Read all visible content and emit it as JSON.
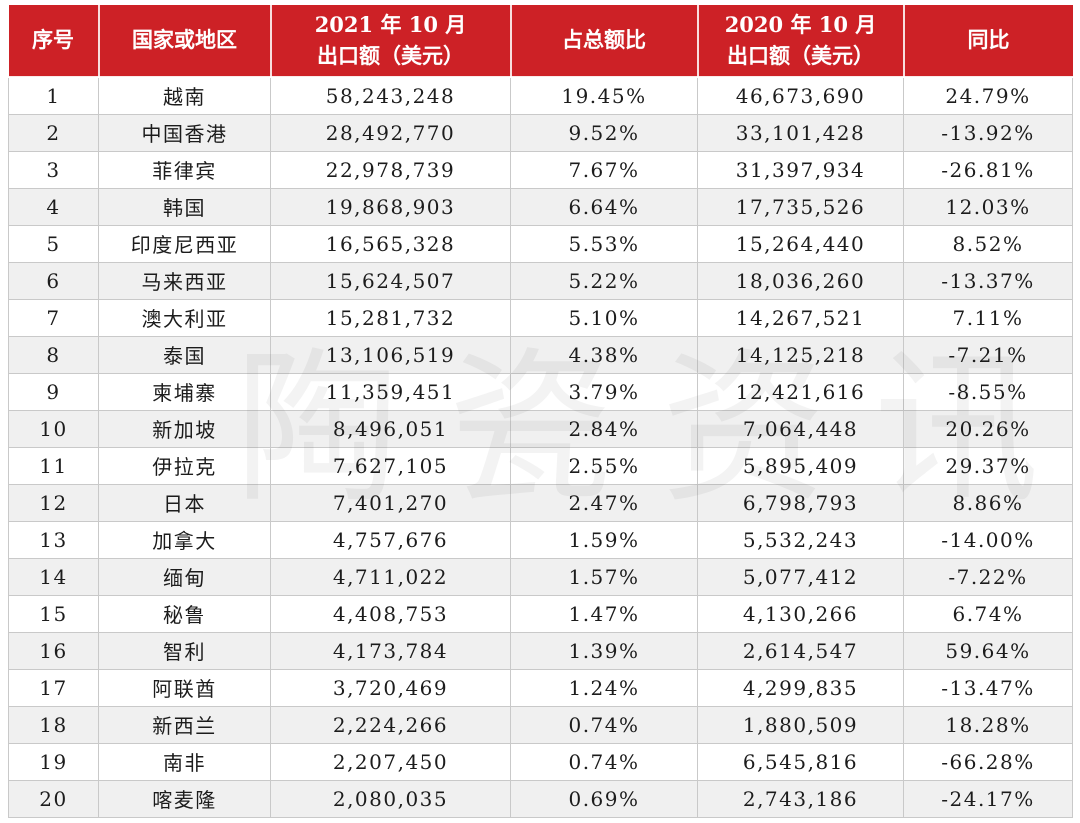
{
  "header": {
    "col_rank": "序号",
    "col_country": "国家或地区",
    "col_2021_line1": "2021 年 10 月",
    "col_2021_line2": "出口额（美元）",
    "col_share": "占总额比",
    "col_2020_line1": "2020 年 10 月",
    "col_2020_line2": "出口额（美元）",
    "col_yoy": "同比"
  },
  "watermark_text": "陶瓷资讯",
  "colors": {
    "header_bg": "#cd2126",
    "header_text": "#ffffff",
    "row_alt_bg": "#f0f0f0",
    "body_text": "#1c1c1c",
    "grid_line": "#c9c9c9"
  },
  "chart_data": {
    "type": "table",
    "title": "",
    "columns": [
      "序号",
      "国家或地区",
      "2021 年 10 月 出口额（美元）",
      "占总额比",
      "2020 年 10 月 出口额（美元）",
      "同比"
    ],
    "rows": [
      [
        "1",
        "越南",
        "58,243,248",
        "19.45%",
        "46,673,690",
        "24.79%"
      ],
      [
        "2",
        "中国香港",
        "28,492,770",
        "9.52%",
        "33,101,428",
        "-13.92%"
      ],
      [
        "3",
        "菲律宾",
        "22,978,739",
        "7.67%",
        "31,397,934",
        "-26.81%"
      ],
      [
        "4",
        "韩国",
        "19,868,903",
        "6.64%",
        "17,735,526",
        "12.03%"
      ],
      [
        "5",
        "印度尼西亚",
        "16,565,328",
        "5.53%",
        "15,264,440",
        "8.52%"
      ],
      [
        "6",
        "马来西亚",
        "15,624,507",
        "5.22%",
        "18,036,260",
        "-13.37%"
      ],
      [
        "7",
        "澳大利亚",
        "15,281,732",
        "5.10%",
        "14,267,521",
        "7.11%"
      ],
      [
        "8",
        "泰国",
        "13,106,519",
        "4.38%",
        "14,125,218",
        "-7.21%"
      ],
      [
        "9",
        "柬埔寨",
        "11,359,451",
        "3.79%",
        "12,421,616",
        "-8.55%"
      ],
      [
        "10",
        "新加坡",
        "8,496,051",
        "2.84%",
        "7,064,448",
        "20.26%"
      ],
      [
        "11",
        "伊拉克",
        "7,627,105",
        "2.55%",
        "5,895,409",
        "29.37%"
      ],
      [
        "12",
        "日本",
        "7,401,270",
        "2.47%",
        "6,798,793",
        "8.86%"
      ],
      [
        "13",
        "加拿大",
        "4,757,676",
        "1.59%",
        "5,532,243",
        "-14.00%"
      ],
      [
        "14",
        "缅甸",
        "4,711,022",
        "1.57%",
        "5,077,412",
        "-7.22%"
      ],
      [
        "15",
        "秘鲁",
        "4,408,753",
        "1.47%",
        "4,130,266",
        "6.74%"
      ],
      [
        "16",
        "智利",
        "4,173,784",
        "1.39%",
        "2,614,547",
        "59.64%"
      ],
      [
        "17",
        "阿联酋",
        "3,720,469",
        "1.24%",
        "4,299,835",
        "-13.47%"
      ],
      [
        "18",
        "新西兰",
        "2,224,266",
        "0.74%",
        "1,880,509",
        "18.28%"
      ],
      [
        "19",
        "南非",
        "2,207,450",
        "0.74%",
        "6,545,816",
        "-66.28%"
      ],
      [
        "20",
        "喀麦隆",
        "2,080,035",
        "0.69%",
        "2,743,186",
        "-24.17%"
      ]
    ]
  }
}
